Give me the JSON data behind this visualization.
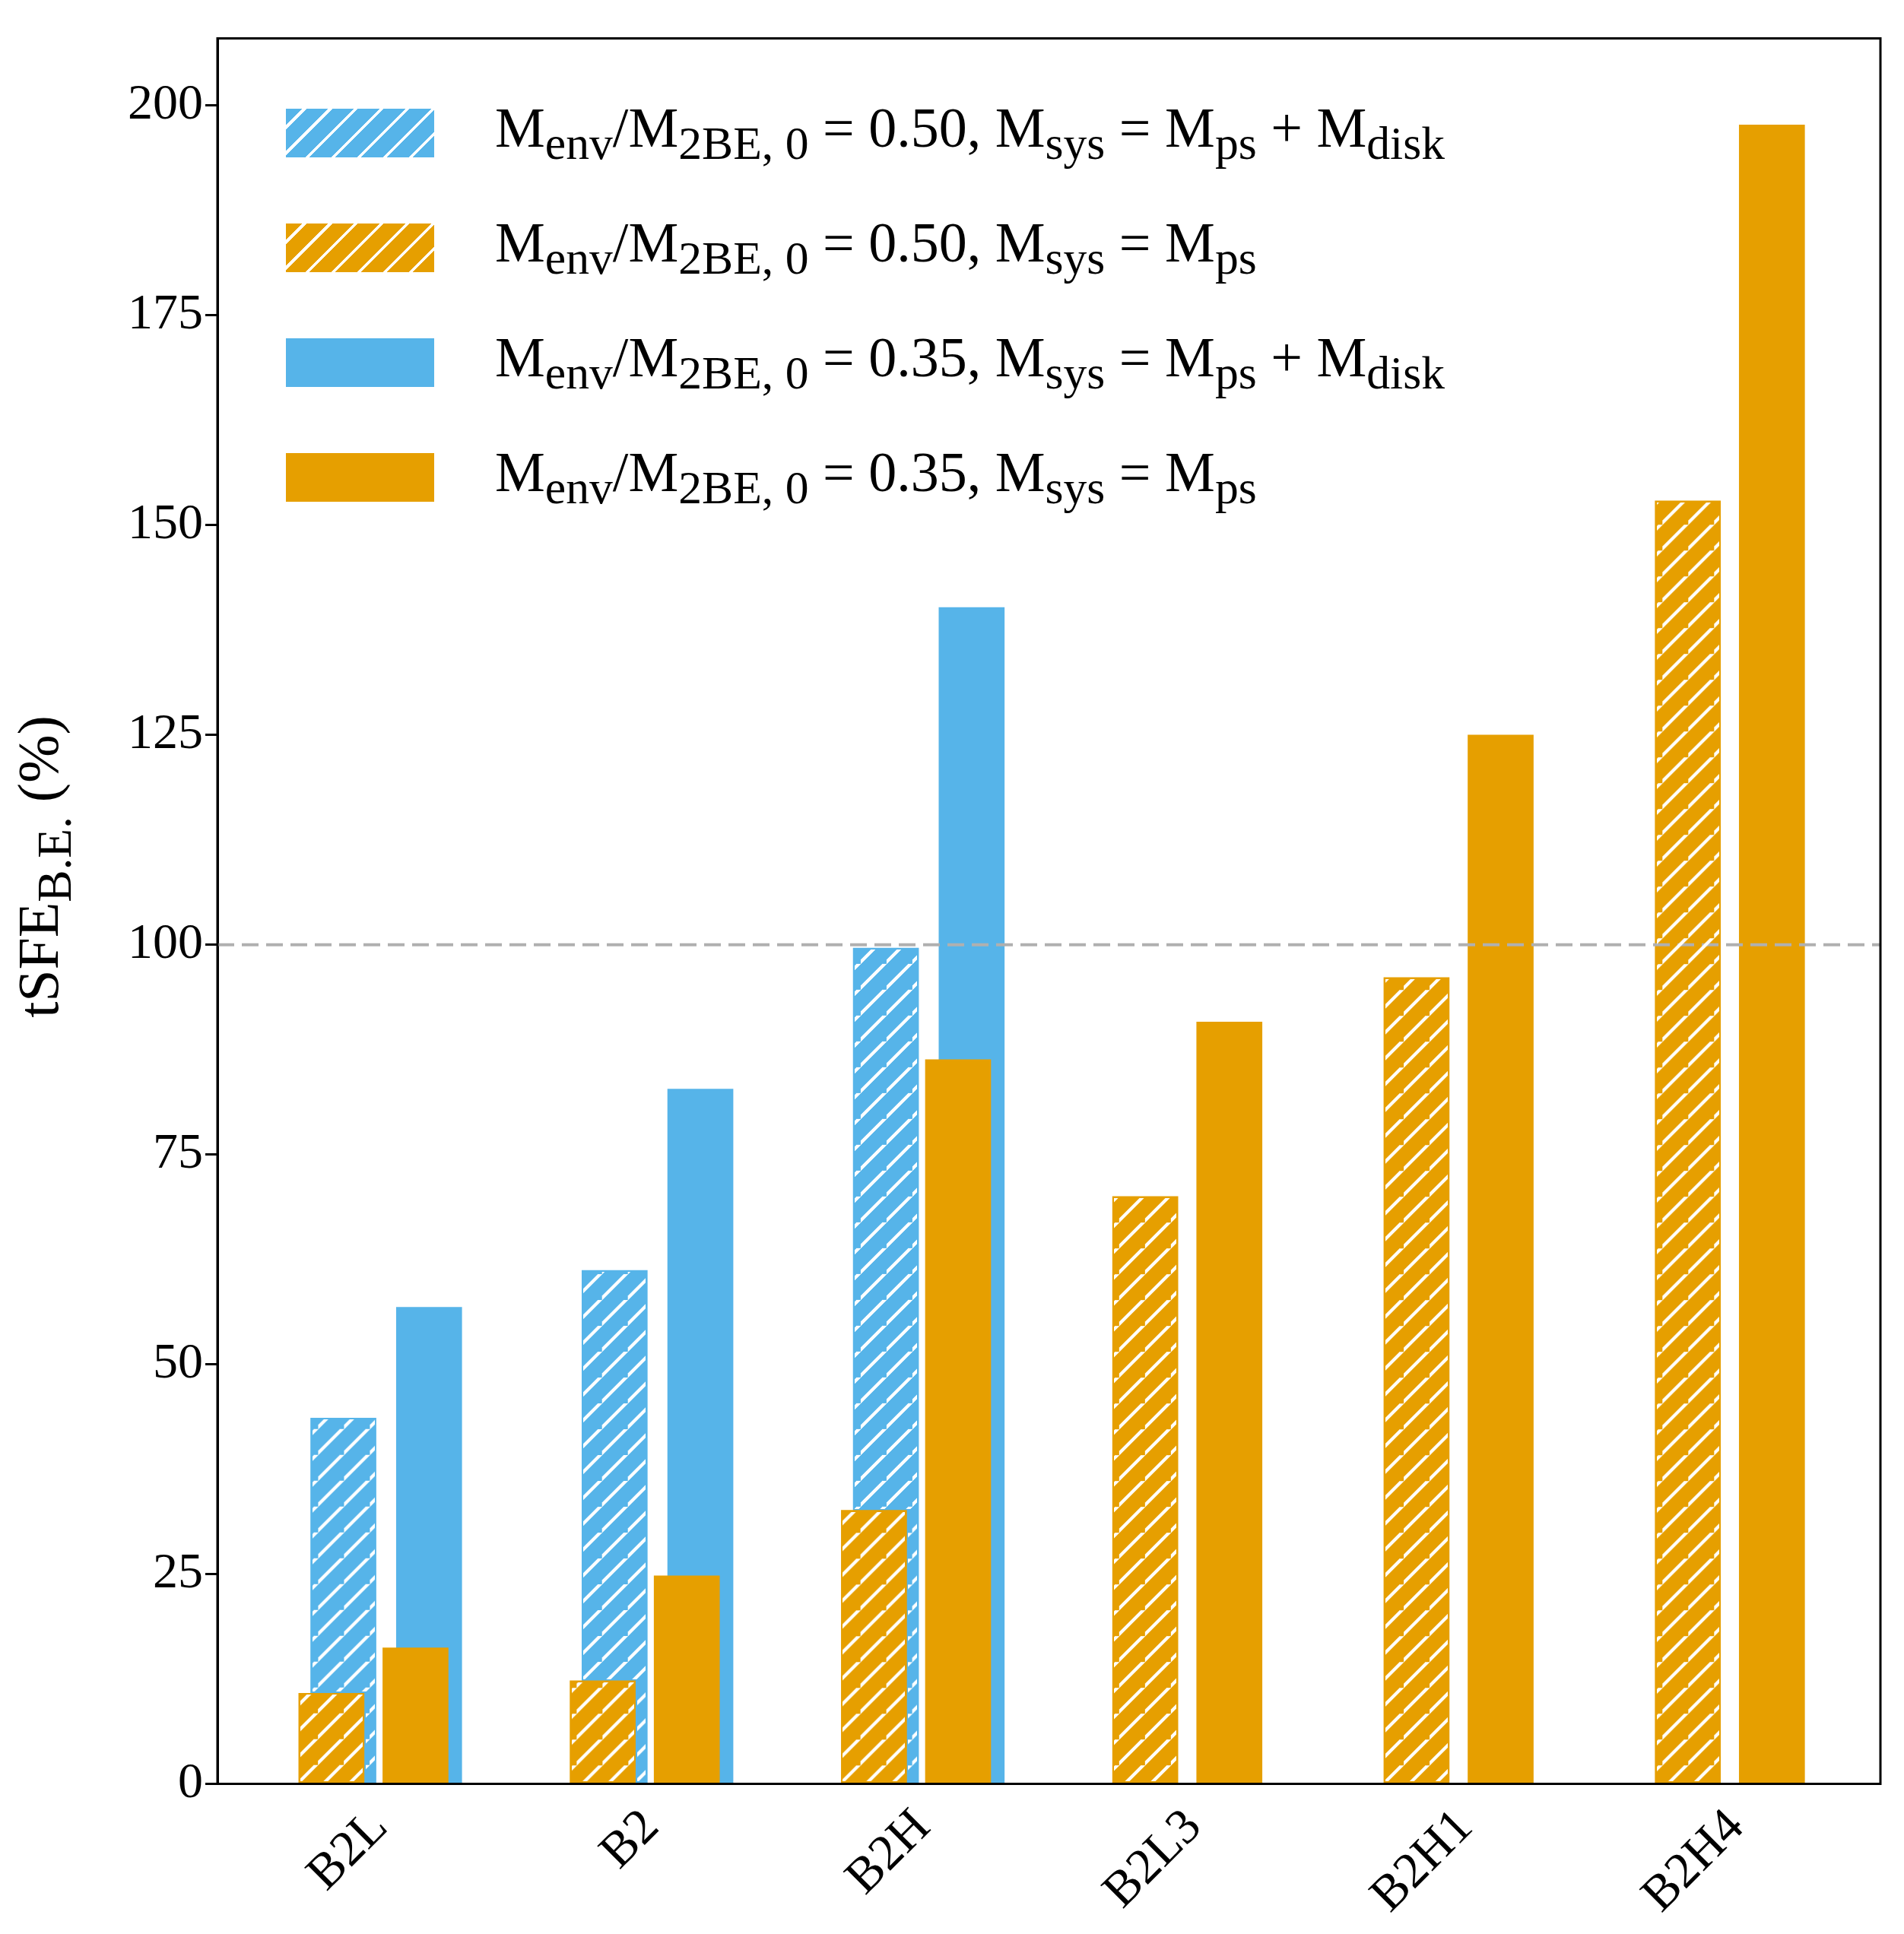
{
  "chart_data": {
    "type": "bar",
    "ylabel": "tSFE$_{B.E.}$ (%)",
    "categories": [
      "B2L",
      "B2",
      "B2H",
      "B2L3",
      "B2H1",
      "B2H4"
    ],
    "series": [
      {
        "name": "M$_{env}$/M$_{2BE, 0}$ = 0.50, M$_{sys}$ = M$_{ps}$ + M$_{disk}$",
        "color": "#56b4e9",
        "values": [
          43.6,
          61.2,
          99.6,
          null,
          null,
          null
        ]
      },
      {
        "name": "M$_{env}$/M$_{2BE, 0}$ = 0.50, M$_{sys}$ = M$_{ps}$",
        "color": "#e69f00",
        "values": [
          10.8,
          12.3,
          32.6,
          70.0,
          96.1,
          152.9
        ]
      },
      {
        "name": "M$_{env}$/M$_{2BE, 0}$ = 0.35, M$_{sys}$ = M$_{ps}$ + M$_{disk}$",
        "color": "#56b4e9",
        "values": [
          56.8,
          82.8,
          140.2,
          null,
          null,
          null
        ]
      },
      {
        "name": "M$_{env}$/M$_{2BE, 0}$ = 0.35, M$_{sys}$ = M$_{ps}$",
        "color": "#e69f00",
        "values": [
          16.2,
          24.8,
          86.3,
          90.8,
          125.0,
          197.7
        ]
      }
    ],
    "ylim": [
      0,
      208
    ],
    "yticks": [
      0,
      25,
      50,
      75,
      100,
      125,
      150,
      175,
      200
    ],
    "ref_lines": [
      {
        "axis": "y",
        "value": 100,
        "color": "#b0b0b0",
        "line_style": "dashed"
      }
    ],
    "grid": false,
    "legend": "top left"
  }
}
